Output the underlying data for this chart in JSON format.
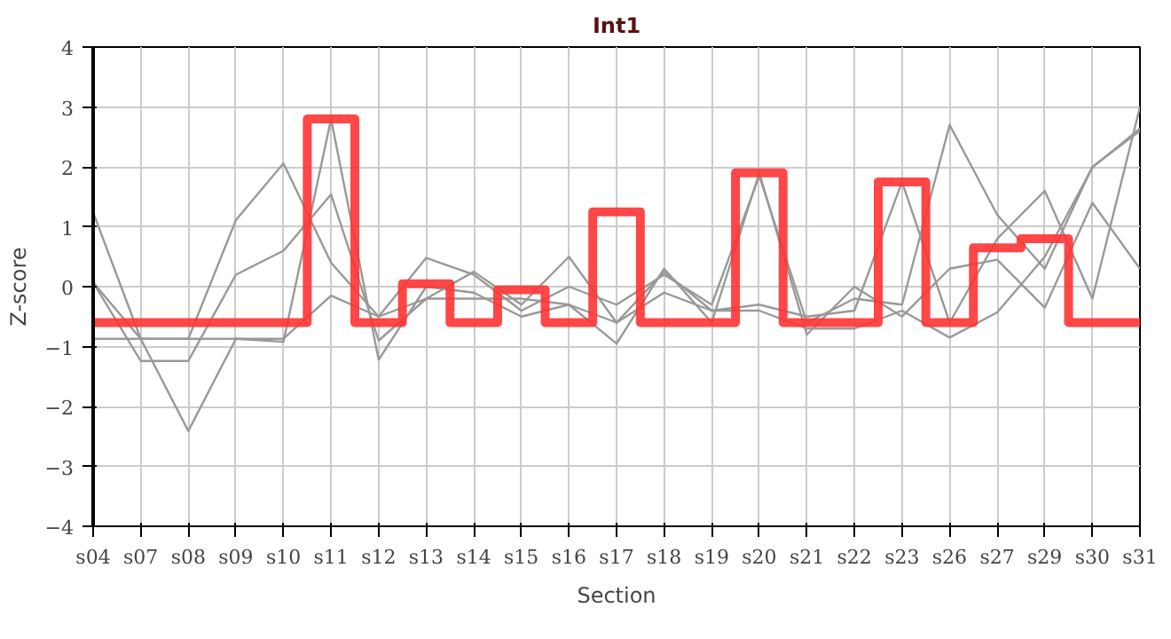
{
  "chart_data": {
    "type": "line",
    "title": "Int1",
    "xlabel": "Section",
    "ylabel": "Z-score",
    "categories": [
      "s04",
      "s07",
      "s08",
      "s09",
      "s10",
      "s11",
      "s12",
      "s13",
      "s14",
      "s15",
      "s16",
      "s17",
      "s18",
      "s19",
      "s20",
      "s21",
      "s22",
      "s23",
      "s26",
      "s27",
      "s29",
      "s30",
      "s31"
    ],
    "series": [
      {
        "color": "#999999",
        "values": [
          1.24,
          -0.87,
          -0.87,
          1.11,
          2.06,
          0.4,
          -0.5,
          0.48,
          0.2,
          -0.4,
          0.0,
          -0.3,
          0.2,
          -0.3,
          1.85,
          -0.6,
          -0.2,
          -0.3,
          2.7,
          1.2,
          0.3,
          2.0,
          2.6
        ]
      },
      {
        "color": "#999999",
        "values": [
          0.07,
          -1.24,
          -1.24,
          0.2,
          0.6,
          1.54,
          -0.9,
          -0.2,
          0.25,
          -0.3,
          0.5,
          -0.6,
          0.25,
          -0.4,
          -0.3,
          -0.5,
          -0.4,
          1.75,
          -0.6,
          0.8,
          1.6,
          -0.2,
          3.0
        ]
      },
      {
        "color": "#999999",
        "values": [
          0.07,
          -0.87,
          -2.41,
          -0.87,
          -0.92,
          2.8,
          -1.22,
          0.0,
          -0.1,
          -0.5,
          -0.3,
          -0.95,
          0.3,
          -0.6,
          1.9,
          -0.8,
          0.0,
          -0.5,
          0.3,
          0.45,
          -0.35,
          1.4,
          0.3
        ]
      },
      {
        "color": "#999999",
        "values": [
          -0.87,
          -0.87,
          -0.87,
          -0.87,
          -0.87,
          -0.15,
          -0.5,
          -0.2,
          -0.2,
          -0.2,
          -0.3,
          -0.6,
          -0.1,
          -0.4,
          -0.4,
          -0.7,
          -0.7,
          -0.4,
          -0.85,
          -0.43,
          0.5,
          1.99,
          2.64
        ]
      },
      {
        "type": "step",
        "color": "#ff3333",
        "values": [
          -0.6,
          -0.6,
          -0.6,
          -0.6,
          -0.6,
          2.8,
          -0.6,
          0.05,
          -0.6,
          -0.05,
          -0.6,
          1.25,
          -0.6,
          -0.6,
          1.9,
          -0.6,
          -0.6,
          1.75,
          -0.6,
          0.65,
          0.8,
          -0.6,
          -0.6
        ]
      }
    ],
    "ylim": [
      -4,
      4
    ],
    "yticks": [
      -4,
      -3,
      -2,
      -1,
      0,
      1,
      2,
      3,
      4
    ],
    "grid": true
  }
}
